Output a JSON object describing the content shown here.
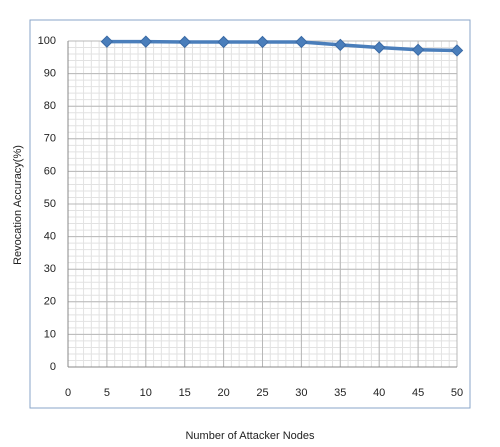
{
  "chart_data": {
    "type": "line",
    "x_label": "Number of Attacker Nodes",
    "y_label": "Revocation Accuracy(%)",
    "x": [
      5,
      10,
      15,
      20,
      25,
      30,
      35,
      40,
      45,
      50
    ],
    "series": [
      {
        "name": "Revocation Accuracy",
        "color": "#4a7ebb",
        "values": [
          99.8,
          99.8,
          99.7,
          99.7,
          99.7,
          99.7,
          98.8,
          98,
          97.3,
          97.1
        ]
      }
    ],
    "xlim": [
      0,
      50
    ],
    "xticks": [
      0,
      5,
      10,
      15,
      20,
      25,
      30,
      35,
      40,
      45,
      50
    ],
    "ylim": [
      0,
      100
    ],
    "yticks": [
      0,
      10,
      20,
      30,
      40,
      50,
      60,
      70,
      80,
      90,
      100
    ],
    "grid": true
  }
}
